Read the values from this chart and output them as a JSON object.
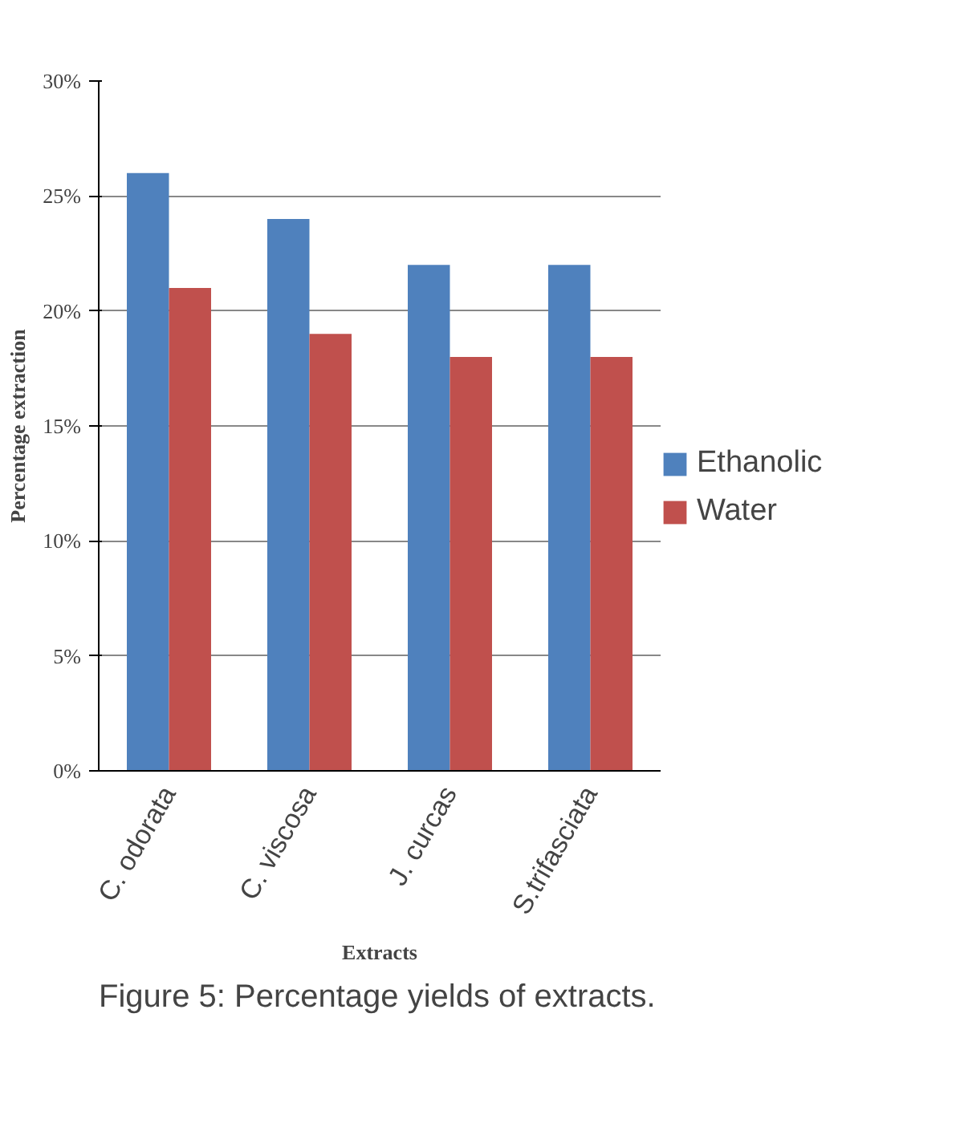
{
  "chart_data": {
    "type": "bar",
    "xlabel": "Extracts",
    "ylabel": "Percentage extraction",
    "categories": [
      "C. odorata",
      "C. viscosa",
      "J. curcas",
      "S.trifasciata"
    ],
    "series": [
      {
        "name": "Ethanolic",
        "color": "#4f81bd",
        "values": [
          26,
          24,
          22,
          22
        ]
      },
      {
        "name": "Water",
        "color": "#c0504d",
        "values": [
          21,
          19,
          18,
          18
        ]
      }
    ],
    "ylim": [
      0,
      30
    ],
    "yticks": [
      {
        "value": 0,
        "label": "0%"
      },
      {
        "value": 5,
        "label": "5%"
      },
      {
        "value": 10,
        "label": "10%"
      },
      {
        "value": 15,
        "label": "15%"
      },
      {
        "value": 20,
        "label": "20%"
      },
      {
        "value": 25,
        "label": "25%"
      },
      {
        "value": 30,
        "label": "30%"
      }
    ],
    "grid": "y",
    "legend": "right",
    "annotations": [
      "Figure 5: Percentage yields of extracts."
    ]
  }
}
